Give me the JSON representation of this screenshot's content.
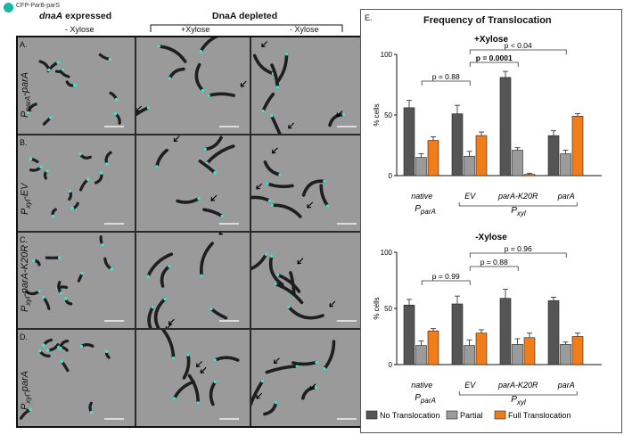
{
  "figure": {
    "marker_legend": "CFP-ParB-parS",
    "header_left": {
      "italic": "dnaA",
      "rest": " expressed"
    },
    "header_right": "DnaA depleted",
    "column_headers": [
      "- Xylose",
      "+Xylose",
      "- Xylose"
    ],
    "rows": [
      {
        "letter": "A.",
        "genotype": [
          {
            "t": "P",
            "s": ""
          },
          {
            "t": "parA",
            "s": "sub"
          },
          {
            "t": "-parA",
            "s": ""
          }
        ]
      },
      {
        "letter": "B.",
        "genotype": [
          {
            "t": "P",
            "s": ""
          },
          {
            "t": "xyl",
            "s": "sub"
          },
          {
            "t": "-EV",
            "s": ""
          }
        ]
      },
      {
        "letter": "C.",
        "genotype": [
          {
            "t": "P",
            "s": ""
          },
          {
            "t": "xyl",
            "s": "sub"
          },
          {
            "t": "-parA-K20R",
            "s": ""
          }
        ]
      },
      {
        "letter": "D.",
        "genotype": [
          {
            "t": "P",
            "s": ""
          },
          {
            "t": "xyl",
            "s": "sub"
          },
          {
            "t": "-parA",
            "s": ""
          }
        ]
      }
    ]
  },
  "panel_e": {
    "letter": "E.",
    "title": "Frequency of Translocation",
    "xlabels": [
      "native",
      "EV",
      "parA-K20R",
      "parA"
    ],
    "group_native": "parA",
    "group_xyl": "xyl",
    "legend": [
      "No Translocation",
      "Partial",
      "Full Translocation"
    ],
    "colors": {
      "none": "#555555",
      "partial": "#9b9b9b",
      "full": "#f07d1a"
    }
  },
  "chart_data": [
    {
      "type": "bar",
      "title": "+Xylose",
      "ylabel": "% cells",
      "ylim": [
        0,
        100
      ],
      "yticks": [
        0,
        50,
        100
      ],
      "categories": [
        "native",
        "EV",
        "parA-K20R",
        "parA"
      ],
      "series": [
        {
          "name": "No Translocation",
          "values": [
            56,
            51,
            81,
            33
          ],
          "errors": [
            6,
            7,
            5,
            4
          ]
        },
        {
          "name": "Partial",
          "values": [
            15,
            16,
            21,
            18
          ],
          "errors": [
            3,
            4,
            2,
            3
          ]
        },
        {
          "name": "Full Translocation",
          "values": [
            29,
            33,
            1,
            49
          ],
          "errors": [
            3,
            3,
            1,
            2
          ]
        }
      ],
      "annotations": [
        {
          "text": "p = 0.88",
          "from": "native",
          "to": "EV"
        },
        {
          "text": "p = 0.0001",
          "from": "EV",
          "to": "parA-K20R",
          "bold": true
        },
        {
          "text": "p < 0.04",
          "from": "EV",
          "to": "parA"
        }
      ]
    },
    {
      "type": "bar",
      "title": "-Xylose",
      "ylabel": "% cells",
      "ylim": [
        0,
        100
      ],
      "yticks": [
        0,
        50,
        100
      ],
      "categories": [
        "native",
        "EV",
        "parA-K20R",
        "parA"
      ],
      "series": [
        {
          "name": "No Translocation",
          "values": [
            53,
            54,
            59,
            57
          ],
          "errors": [
            5,
            7,
            8,
            3
          ]
        },
        {
          "name": "Partial",
          "values": [
            17,
            17,
            18,
            18
          ],
          "errors": [
            4,
            5,
            5,
            2
          ]
        },
        {
          "name": "Full Translocation",
          "values": [
            30,
            28,
            24,
            25
          ],
          "errors": [
            2,
            3,
            4,
            3
          ]
        }
      ],
      "annotations": [
        {
          "text": "p = 0.99",
          "from": "native",
          "to": "EV"
        },
        {
          "text": "p = 0.88",
          "from": "EV",
          "to": "parA-K20R"
        },
        {
          "text": "p = 0.96",
          "from": "EV",
          "to": "parA"
        }
      ]
    }
  ]
}
